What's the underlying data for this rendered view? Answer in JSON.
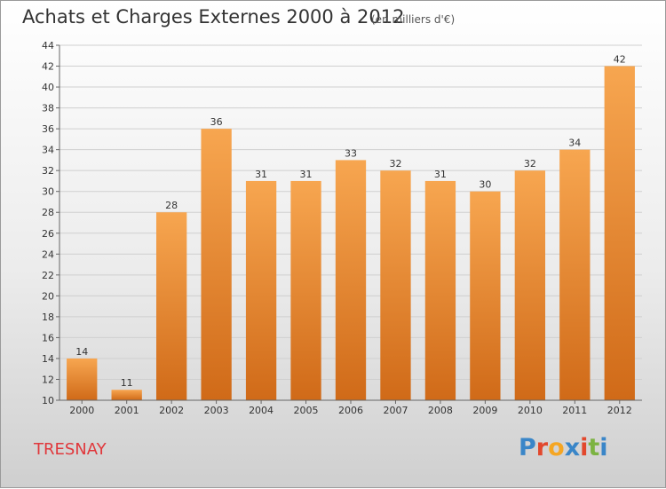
{
  "header": {
    "title": "Achats et Charges Externes 2000 à 2012",
    "subtitle": "(en milliers d'€)"
  },
  "footer": {
    "commune": "TRESNAY",
    "logo_text": "Proxiti",
    "logo_colors": [
      "#3a86c8",
      "#e2482d",
      "#f5a623",
      "#3a86c8",
      "#e2482d",
      "#7cb342",
      "#3a86c8"
    ]
  },
  "colors": {
    "bar_top": "#f7a650",
    "bar_bottom": "#d06a18",
    "grid": "#cfcfcf",
    "text": "#333333"
  },
  "chart_data": {
    "type": "bar",
    "title": "Achats et Charges Externes 2000 à 2012",
    "subtitle": "(en milliers d'€)",
    "categories": [
      "2000",
      "2001",
      "2002",
      "2003",
      "2004",
      "2005",
      "2006",
      "2007",
      "2008",
      "2009",
      "2010",
      "2011",
      "2012"
    ],
    "values": [
      14,
      11,
      28,
      36,
      31,
      31,
      33,
      32,
      31,
      30,
      32,
      34,
      42
    ],
    "ylim": [
      10,
      44
    ],
    "yticks": [
      10,
      12,
      14,
      16,
      18,
      20,
      22,
      24,
      26,
      28,
      30,
      32,
      34,
      36,
      38,
      40,
      42,
      44
    ],
    "grid": true,
    "data_labels": true
  }
}
